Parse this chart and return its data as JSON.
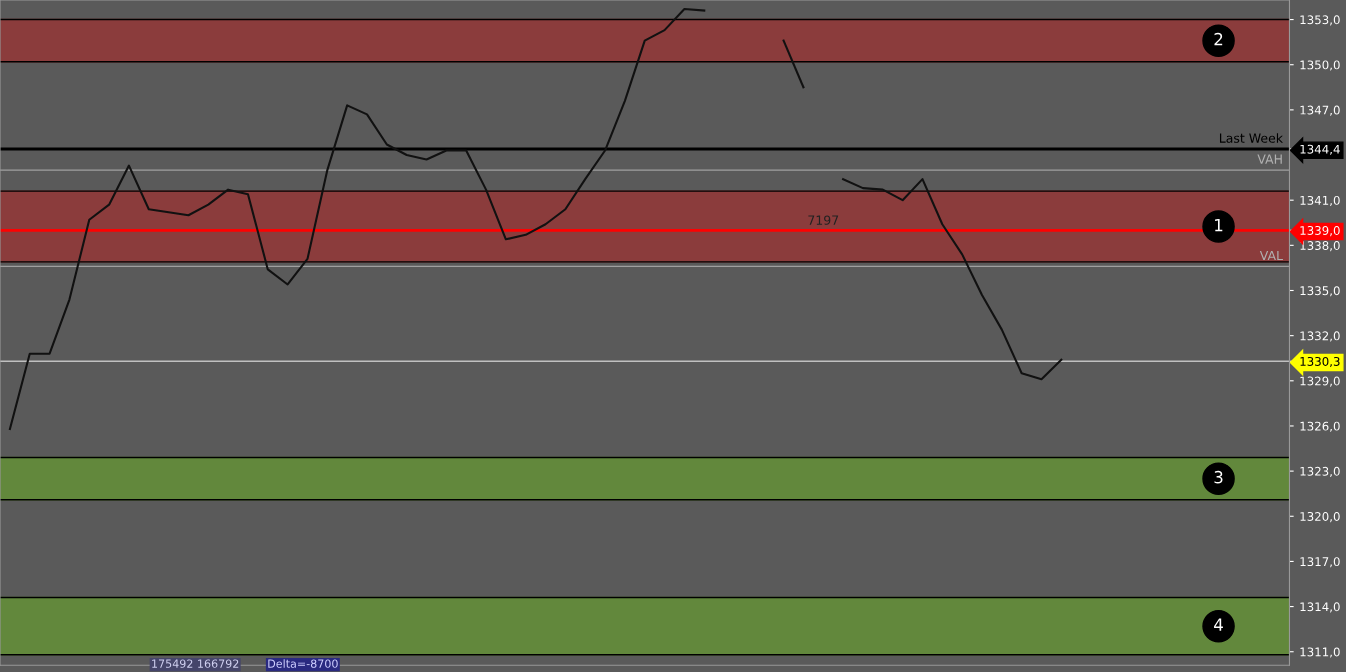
{
  "chart_data": {
    "type": "line",
    "categories": [
      null,
      null,
      null,
      null,
      null,
      null,
      null,
      null,
      null,
      null,
      null,
      null,
      null,
      null,
      null,
      null,
      null,
      null,
      null,
      null,
      null,
      null,
      null,
      null,
      null,
      null,
      null,
      null,
      null,
      null,
      null,
      null,
      null,
      null,
      null,
      null,
      null,
      null,
      null,
      null,
      null,
      null,
      null,
      null,
      null,
      null,
      null,
      null,
      null,
      null,
      null,
      null,
      null,
      null,
      null,
      null,
      null,
      null,
      null,
      null,
      null,
      null,
      null,
      null,
      null
    ],
    "series": [
      {
        "color": "#111111",
        "values": [
          1325.8,
          1330.8,
          1330.8,
          1334.4,
          1339.7,
          1340.7,
          1343.3,
          1340.4,
          1340.2,
          1340.0,
          1340.7,
          1341.7,
          1341.4,
          1336.4,
          1335.4,
          1337.1,
          1343.0,
          1347.3,
          1346.7,
          1344.7,
          1344.0,
          1343.7,
          1344.3,
          1344.3,
          1341.7,
          1338.4,
          1338.7,
          1339.4,
          1340.4,
          1342.4,
          1344.3,
          1347.6,
          1351.6,
          1352.3,
          1353.7,
          1353.6,
          null,
          null,
          null,
          null,
          null,
          null,
          null,
          null,
          null,
          null,
          null,
          null,
          null,
          null,
          null,
          null,
          null,
          null,
          null,
          null,
          null,
          null,
          null,
          null,
          null,
          null,
          null,
          null,
          null
        ]
      },
      {
        "color": "#111111",
        "values": [
          null,
          null,
          null,
          null,
          null,
          null,
          null,
          null,
          null,
          null,
          null,
          null,
          null,
          null,
          null,
          null,
          null,
          null,
          null,
          null,
          null,
          null,
          null,
          null,
          null,
          null,
          null,
          null,
          null,
          null,
          null,
          null,
          null,
          null,
          null,
          null,
          null,
          null,
          null,
          1351.6,
          1348.5,
          null,
          null,
          null,
          null,
          null,
          null,
          null,
          null,
          null,
          null,
          null,
          null,
          null,
          null,
          null,
          null,
          null,
          null,
          null,
          null,
          null,
          null,
          null,
          null
        ]
      },
      {
        "color": "#111111",
        "values": [
          null,
          null,
          null,
          null,
          null,
          null,
          null,
          null,
          null,
          null,
          null,
          null,
          null,
          null,
          null,
          null,
          null,
          null,
          null,
          null,
          null,
          null,
          null,
          null,
          null,
          null,
          null,
          null,
          null,
          null,
          null,
          null,
          null,
          null,
          null,
          null,
          null,
          null,
          null,
          null,
          null,
          null,
          1342.4,
          1341.8,
          1341.7,
          1341.0,
          1342.4,
          1339.4,
          1337.4,
          1334.7,
          1332.4,
          1329.5,
          1329.1,
          1330.4,
          null,
          null,
          null,
          null,
          null,
          null,
          null,
          null,
          null,
          null,
          null
        ]
      }
    ],
    "ylim": [
      1310.1,
      1354.3
    ],
    "yticks": [
      {
        "value": 1311,
        "label": "1311,0"
      },
      {
        "value": 1314,
        "label": "1314,0"
      },
      {
        "value": 1317,
        "label": "1317,0"
      },
      {
        "value": 1320,
        "label": "1320,0"
      },
      {
        "value": 1323,
        "label": "1323,0"
      },
      {
        "value": 1326,
        "label": "1326,0"
      },
      {
        "value": 1329,
        "label": "1329,0"
      },
      {
        "value": 1332,
        "label": "1332,0"
      },
      {
        "value": 1335,
        "label": "1335,0"
      },
      {
        "value": 1338,
        "label": "1338,0"
      },
      {
        "value": 1341,
        "label": "1341,0"
      },
      {
        "value": 1330.3,
        "label": "1330,3"
      },
      {
        "value": 1339.0,
        "label": "1339,0"
      },
      {
        "value": 1344.4,
        "label": "1344,4"
      },
      {
        "value": 1347,
        "label": "1347,0"
      },
      {
        "value": 1350,
        "label": "1350,0"
      },
      {
        "value": 1353,
        "label": "1353,0"
      }
    ],
    "bands": [
      {
        "axis": "y",
        "from": 1350.2,
        "to": 1353.0,
        "label": "2",
        "color": "#8b3c3c"
      },
      {
        "axis": "y",
        "from": 1336.9,
        "to": 1341.6,
        "label": "1",
        "color": "#8b3c3c"
      },
      {
        "axis": "y",
        "from": 1321.1,
        "to": 1323.9,
        "label": "3",
        "color": "#62883c"
      },
      {
        "axis": "y",
        "from": 1310.8,
        "to": 1314.6,
        "label": "4",
        "color": "#62883c"
      }
    ],
    "ref_lines": [
      {
        "axis": "y",
        "value": 1344.4,
        "label": "Last Week",
        "color": "#000000"
      },
      {
        "axis": "y",
        "value": 1339.0,
        "label": null,
        "color": "#ff0000"
      },
      {
        "axis": "y",
        "value": 1330.3,
        "label": null,
        "color": "#c0c0c0"
      },
      {
        "axis": "y",
        "value": 1343.0,
        "label": "VAH",
        "color": "#a0a0a0"
      },
      {
        "axis": "y",
        "value": 1336.6,
        "label": "VAL",
        "color": "#a0a0a0"
      }
    ],
    "annotations": [
      "7197",
      "175492 166792",
      "Delta=-8700"
    ],
    "tick_labels": "y",
    "legend": false,
    "grid": false,
    "marker": "none",
    "line_style": "solid"
  }
}
